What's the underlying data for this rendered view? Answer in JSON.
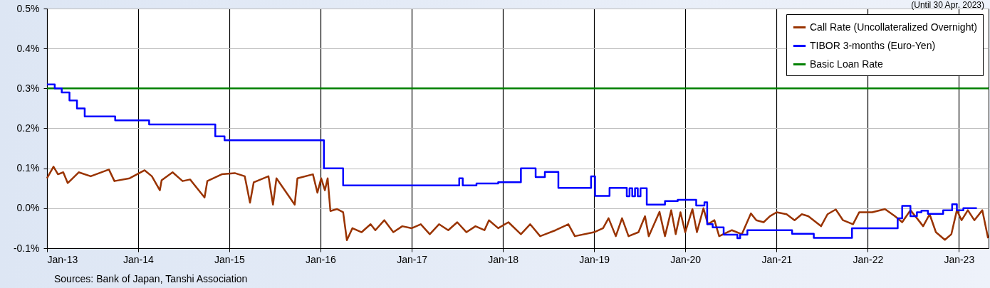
{
  "chart_data": {
    "type": "line",
    "annotations": [
      "(Until 30 Apr. 2023)",
      "Sources: Bank of Japan, Tanshi Association"
    ],
    "xlim": [
      "2013-01-01",
      "2023-04-30"
    ],
    "xticks": [
      {
        "value": "2013-01-01",
        "label": "Jan-13"
      },
      {
        "value": "2014-01-01",
        "label": "Jan-14"
      },
      {
        "value": "2015-01-01",
        "label": "Jan-15"
      },
      {
        "value": "2016-01-01",
        "label": "Jan-16"
      },
      {
        "value": "2017-01-01",
        "label": "Jan-17"
      },
      {
        "value": "2018-01-01",
        "label": "Jan-18"
      },
      {
        "value": "2019-01-01",
        "label": "Jan-19"
      },
      {
        "value": "2020-01-01",
        "label": "Jan-20"
      },
      {
        "value": "2021-01-01",
        "label": "Jan-21"
      },
      {
        "value": "2022-01-01",
        "label": "Jan-22"
      },
      {
        "value": "2023-01-01",
        "label": "Jan-23"
      }
    ],
    "ylim": [
      -0.1,
      0.5
    ],
    "yticks": [
      {
        "value": -0.1,
        "label": "-0.1%"
      },
      {
        "value": 0,
        "label": "0.0%"
      },
      {
        "value": 0.1,
        "label": "0.1%"
      },
      {
        "value": 0.2,
        "label": "0.2%"
      },
      {
        "value": 0.3,
        "label": "0.3%"
      },
      {
        "value": 0.4,
        "label": "0.4%"
      },
      {
        "value": 0.5,
        "label": "0.5%"
      }
    ],
    "grid": true,
    "legend": "top right",
    "marker": "none",
    "series": [
      {
        "name": "Call Rate (Uncollateralized Overnight)",
        "color": "#993300",
        "type": "line",
        "x": [
          "2013-01-01",
          "2013-01-27",
          "2013-02-14",
          "2013-03-07",
          "2013-03-25",
          "2013-04-09",
          "2013-05-08",
          "2013-06-25",
          "2013-09-06",
          "2013-09-28",
          "2013-11-28",
          "2014-01-27",
          "2014-02-25",
          "2014-03-29",
          "2014-04-05",
          "2014-05-19",
          "2014-06-28",
          "2014-07-28",
          "2014-09-24",
          "2014-10-05",
          "2014-12-02",
          "2015-01-23",
          "2015-03-04",
          "2015-03-25",
          "2015-04-09",
          "2015-06-07",
          "2015-06-25",
          "2015-07-09",
          "2015-09-20",
          "2015-10-01",
          "2015-12-02",
          "2015-12-20",
          "2016-01-04",
          "2016-01-19",
          "2016-01-30",
          "2016-02-10",
          "2016-03-07",
          "2016-04-01",
          "2016-04-16",
          "2016-05-08",
          "2016-06-14",
          "2016-07-20",
          "2016-08-08",
          "2016-09-13",
          "2016-10-19",
          "2016-11-24",
          "2017-01-01",
          "2017-02-06",
          "2017-03-14",
          "2017-04-20",
          "2017-05-27",
          "2017-07-02",
          "2017-08-08",
          "2017-09-13",
          "2017-10-19",
          "2017-11-06",
          "2017-12-13",
          "2018-01-23",
          "2018-03-14",
          "2018-04-20",
          "2018-05-30",
          "2018-07-31",
          "2018-09-20",
          "2018-10-16",
          "2019-01-01",
          "2019-02-06",
          "2019-02-28",
          "2019-03-29",
          "2019-04-23",
          "2019-05-19",
          "2019-06-28",
          "2019-07-24",
          "2019-08-08",
          "2019-09-20",
          "2019-10-12",
          "2019-11-06",
          "2019-11-24",
          "2019-12-13",
          "2020-01-01",
          "2020-01-30",
          "2020-02-17",
          "2020-03-14",
          "2020-04-01",
          "2020-04-27",
          "2020-05-16",
          "2020-07-06",
          "2020-08-15",
          "2020-09-20",
          "2020-10-12",
          "2020-11-10",
          "2020-12-05",
          "2021-01-01",
          "2021-02-10",
          "2021-03-14",
          "2021-04-12",
          "2021-05-08",
          "2021-06-28",
          "2021-07-24",
          "2021-08-26",
          "2021-09-24",
          "2021-11-03",
          "2021-11-28",
          "2022-01-19",
          "2022-03-11",
          "2022-04-20",
          "2022-05-19",
          "2022-06-21",
          "2022-07-17",
          "2022-08-11",
          "2022-09-06",
          "2022-10-01",
          "2022-11-06",
          "2022-12-02",
          "2022-12-24",
          "2023-01-12",
          "2023-02-06",
          "2023-03-04",
          "2023-04-05",
          "2023-04-28"
        ],
        "values": [
          0.075,
          0.104,
          0.085,
          0.09,
          0.063,
          0.072,
          0.09,
          0.08,
          0.097,
          0.068,
          0.075,
          0.095,
          0.08,
          0.045,
          0.07,
          0.09,
          0.068,
          0.072,
          0.027,
          0.068,
          0.085,
          0.088,
          0.08,
          0.014,
          0.065,
          0.08,
          0.009,
          0.075,
          0.009,
          0.075,
          0.085,
          0.039,
          0.075,
          0.045,
          0.075,
          -0.007,
          -0.002,
          -0.01,
          -0.08,
          -0.05,
          -0.06,
          -0.04,
          -0.055,
          -0.03,
          -0.06,
          -0.045,
          -0.05,
          -0.04,
          -0.065,
          -0.04,
          -0.055,
          -0.035,
          -0.06,
          -0.045,
          -0.055,
          -0.03,
          -0.05,
          -0.035,
          -0.065,
          -0.04,
          -0.07,
          -0.055,
          -0.04,
          -0.07,
          -0.06,
          -0.05,
          -0.025,
          -0.07,
          -0.025,
          -0.07,
          -0.06,
          -0.02,
          -0.07,
          -0.009,
          -0.07,
          -0.005,
          -0.065,
          -0.01,
          -0.06,
          -0.002,
          -0.06,
          0.0,
          -0.04,
          -0.03,
          -0.07,
          -0.055,
          -0.065,
          -0.013,
          -0.03,
          -0.035,
          -0.02,
          -0.01,
          -0.015,
          -0.03,
          -0.015,
          -0.02,
          -0.045,
          -0.015,
          -0.003,
          -0.03,
          -0.04,
          -0.01,
          -0.01,
          -0.002,
          -0.02,
          -0.035,
          -0.005,
          -0.025,
          -0.045,
          -0.015,
          -0.06,
          -0.079,
          -0.065,
          -0.005,
          -0.03,
          -0.005,
          -0.03,
          -0.005,
          -0.075
        ]
      },
      {
        "name": "TIBOR 3-months (Euro-Yen)",
        "color": "#0000ff",
        "type": "step",
        "x": [
          "2013-01-01",
          "2013-02-01",
          "2013-03-01",
          "2013-04-01",
          "2013-05-01",
          "2013-06-01",
          "2013-10-01",
          "2014-02-14",
          "2014-09-28",
          "2014-11-06",
          "2014-12-13",
          "2015-03-01",
          "2016-01-15",
          "2016-02-10",
          "2016-04-01",
          "2017-07-10",
          "2017-07-24",
          "2017-09-17",
          "2017-12-13",
          "2018-03-14",
          "2018-05-12",
          "2018-06-18",
          "2018-08-11",
          "2018-12-20",
          "2019-01-05",
          "2019-03-04",
          "2019-05-12",
          "2019-05-23",
          "2019-06-03",
          "2019-06-14",
          "2019-06-25",
          "2019-07-06",
          "2019-07-31",
          "2019-10-12",
          "2019-12-02",
          "2020-02-14",
          "2020-03-18",
          "2020-03-29",
          "2020-04-20",
          "2020-06-03",
          "2020-07-28",
          "2020-08-08",
          "2020-09-06",
          "2021-03-04",
          "2021-05-30",
          "2021-10-30",
          "2022-05-01",
          "2022-05-19",
          "2022-06-21",
          "2022-07-17",
          "2022-08-04",
          "2022-08-30",
          "2022-10-30",
          "2022-12-05",
          "2022-12-24",
          "2023-01-19",
          "2023-03-14"
        ],
        "values": [
          0.31,
          0.3,
          0.29,
          0.27,
          0.25,
          0.23,
          0.22,
          0.21,
          0.21,
          0.18,
          0.17,
          0.17,
          0.1,
          0.1,
          0.057,
          0.075,
          0.057,
          0.062,
          0.065,
          0.1,
          0.078,
          0.091,
          0.051,
          0.08,
          0.031,
          0.051,
          0.03,
          0.05,
          0.03,
          0.05,
          0.03,
          0.05,
          0.009,
          0.018,
          0.021,
          0.007,
          0.015,
          -0.04,
          -0.048,
          -0.066,
          -0.075,
          -0.066,
          -0.055,
          -0.064,
          -0.074,
          -0.05,
          -0.025,
          0.006,
          -0.02,
          -0.01,
          -0.006,
          -0.014,
          -0.005,
          0.01,
          -0.005,
          0.0,
          0.0
        ]
      },
      {
        "name": "Basic Loan Rate",
        "color": "#008000",
        "type": "line",
        "x": [
          "2013-01-01",
          "2023-04-30"
        ],
        "values": [
          0.3,
          0.3
        ]
      }
    ]
  }
}
